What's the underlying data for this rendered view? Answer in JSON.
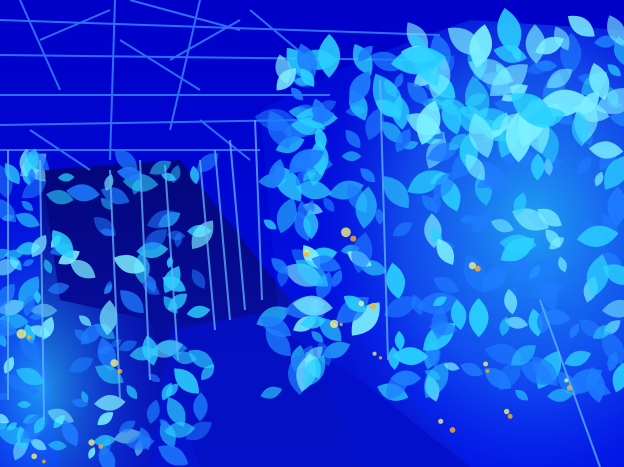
{
  "image": {
    "colormap": [
      "#0000c8",
      "#0a28ff",
      "#1e7cff",
      "#2ad0ff",
      "#7bf0ff",
      "#f4f27a",
      "#ffb02a"
    ]
  }
}
